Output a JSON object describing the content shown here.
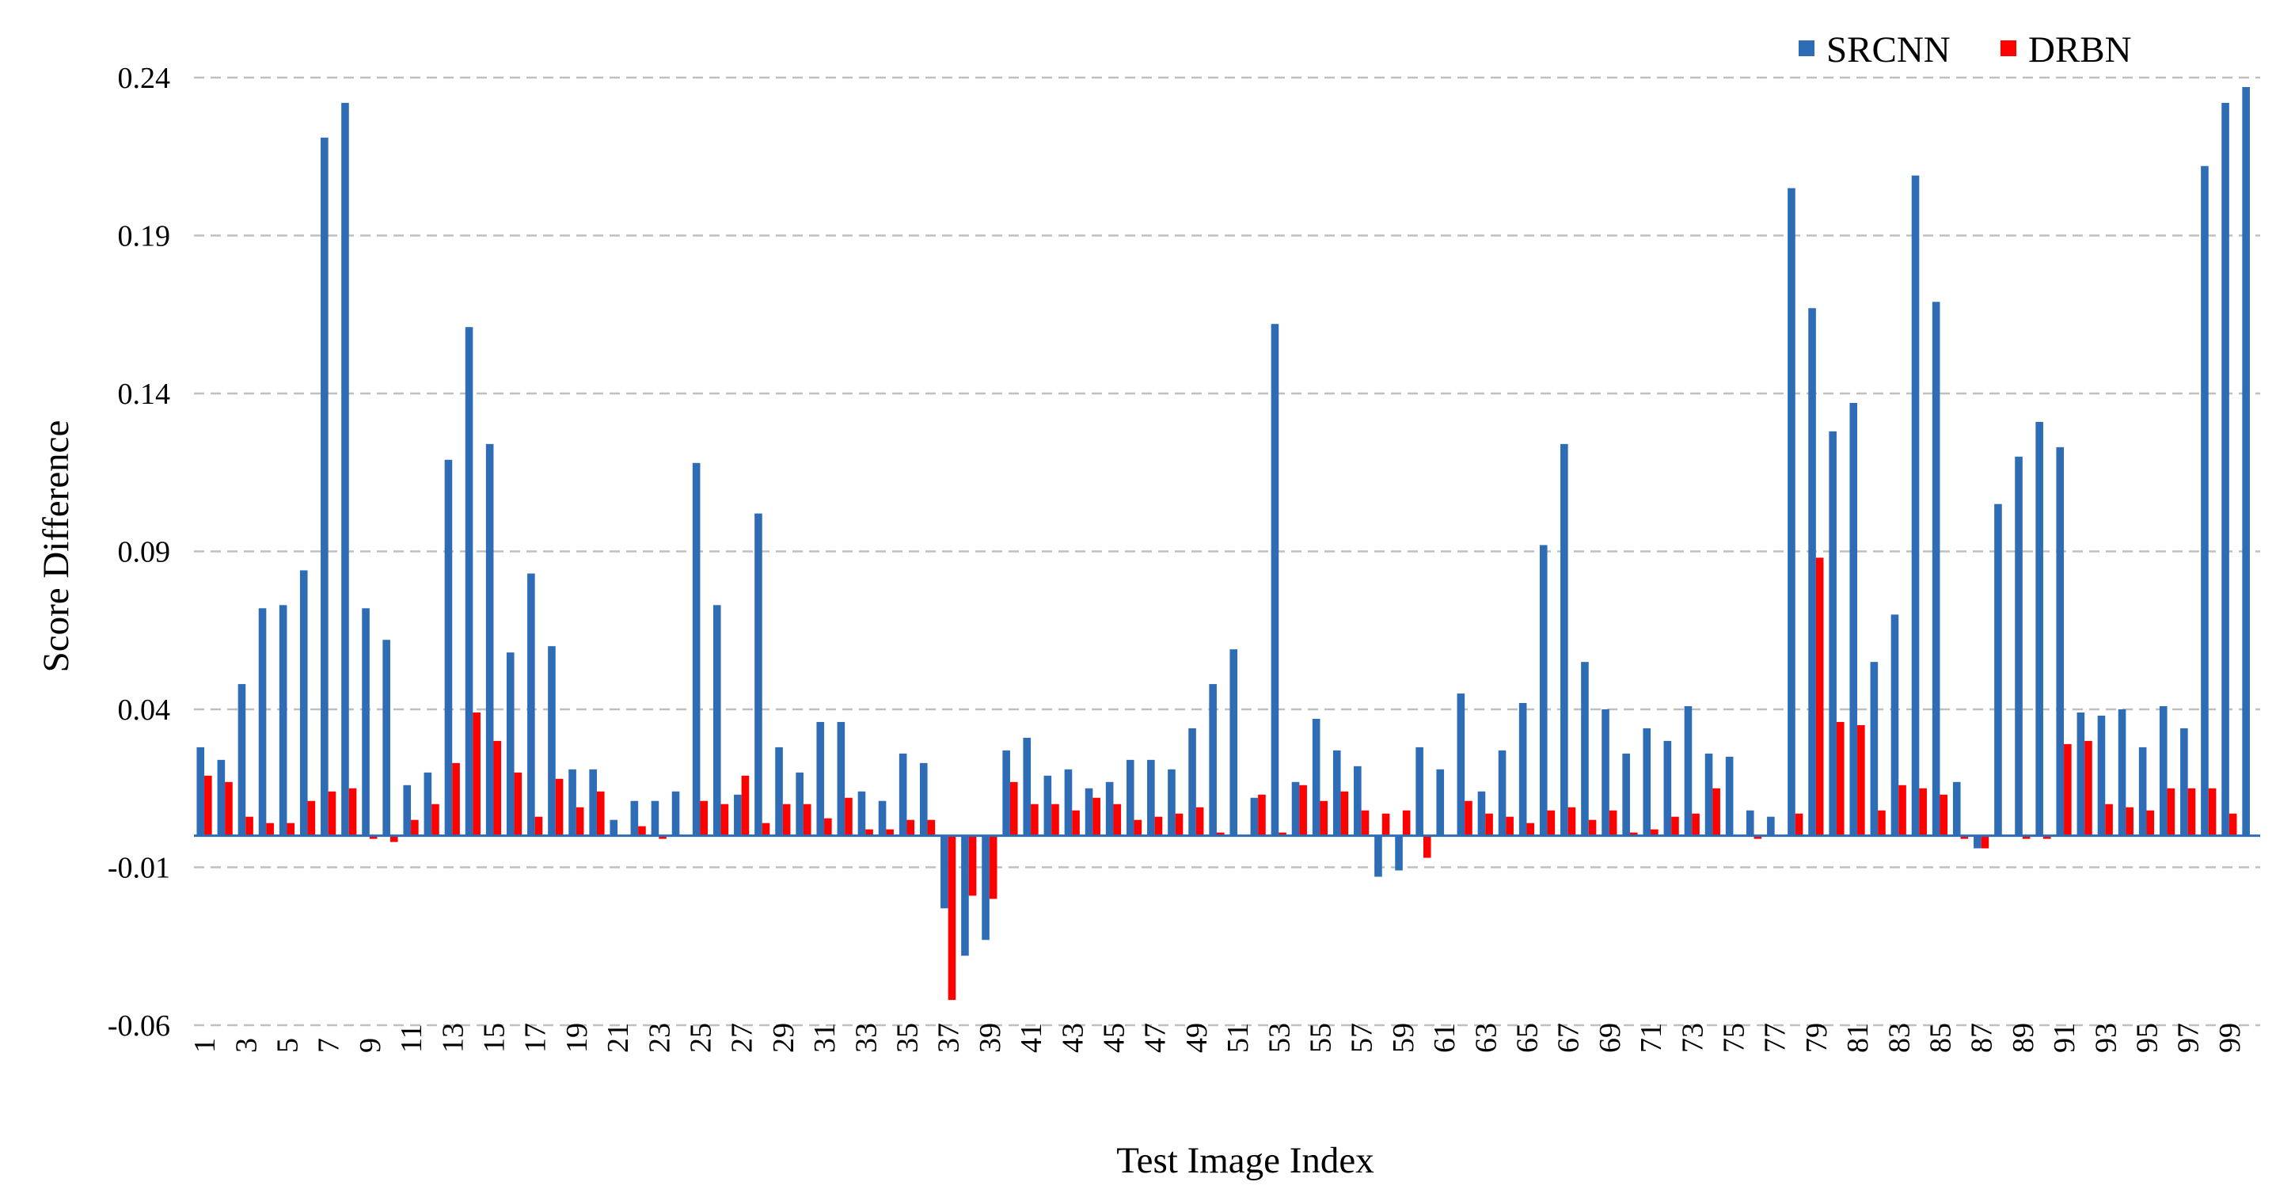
{
  "chart_data": {
    "type": "bar",
    "xlabel": "Test Image Index",
    "ylabel": "Score Difference",
    "ylim": [
      -0.06,
      0.24
    ],
    "yticks": [
      -0.06,
      -0.01,
      0.04,
      0.09,
      0.14,
      0.19,
      0.24
    ],
    "ytick_labels": [
      "-0.06",
      "-0.01",
      "0.04",
      "0.09",
      "0.14",
      "0.19",
      "0.24"
    ],
    "grid": "horizontal dashed",
    "legend_position": "top-right",
    "categories": [
      "1",
      "2",
      "3",
      "4",
      "5",
      "6",
      "7",
      "8",
      "9",
      "10",
      "11",
      "12",
      "13",
      "14",
      "15",
      "16",
      "17",
      "18",
      "19",
      "20",
      "21",
      "22",
      "23",
      "24",
      "25",
      "26",
      "27",
      "28",
      "29",
      "30",
      "31",
      "32",
      "33",
      "34",
      "35",
      "36",
      "37",
      "38",
      "39",
      "40",
      "41",
      "42",
      "43",
      "44",
      "45",
      "46",
      "47",
      "48",
      "49",
      "50",
      "51",
      "52",
      "53",
      "54",
      "55",
      "56",
      "57",
      "58",
      "59",
      "60",
      "61",
      "62",
      "63",
      "64",
      "65",
      "66",
      "67",
      "68",
      "69",
      "70",
      "71",
      "72",
      "73",
      "74",
      "75",
      "76",
      "77",
      "78",
      "79",
      "80",
      "81",
      "82",
      "83",
      "84",
      "85",
      "86",
      "87",
      "88",
      "89",
      "90",
      "91",
      "92",
      "93",
      "94",
      "95",
      "96",
      "97",
      "98",
      "99",
      "100"
    ],
    "visible_tick_labels": [
      "1",
      "3",
      "5",
      "7",
      "9",
      "11",
      "13",
      "15",
      "17",
      "19",
      "21",
      "23",
      "25",
      "27",
      "29",
      "31",
      "33",
      "35",
      "37",
      "39",
      "41",
      "43",
      "45",
      "47",
      "49",
      "51",
      "53",
      "55",
      "57",
      "59",
      "61",
      "63",
      "65",
      "67",
      "69",
      "71",
      "73",
      "75",
      "77",
      "79",
      "81",
      "83",
      "85",
      "87",
      "89",
      "91",
      "93",
      "95",
      "97",
      "99"
    ],
    "series": [
      {
        "name": "SRCNN",
        "color": "#2e6cb5",
        "values": [
          0.028,
          0.024,
          0.048,
          0.072,
          0.073,
          0.084,
          0.221,
          0.232,
          0.072,
          0.062,
          0.016,
          0.02,
          0.119,
          0.161,
          0.124,
          0.058,
          0.083,
          0.06,
          0.021,
          0.021,
          0.005,
          0.011,
          0.011,
          0.014,
          0.118,
          0.073,
          0.013,
          0.102,
          0.028,
          0.02,
          0.036,
          0.036,
          0.014,
          0.011,
          0.026,
          0.023,
          -0.023,
          -0.038,
          -0.033,
          0.027,
          0.031,
          0.019,
          0.021,
          0.015,
          0.017,
          0.024,
          0.024,
          0.021,
          0.034,
          0.048,
          0.059,
          0.012,
          0.162,
          0.017,
          0.037,
          0.027,
          0.022,
          -0.013,
          -0.011,
          0.028,
          0.021,
          0.045,
          0.014,
          0.027,
          0.042,
          0.092,
          0.124,
          0.055,
          0.04,
          0.026,
          0.034,
          0.03,
          0.041,
          0.026,
          0.025,
          0.008,
          0.006,
          0.205,
          0.167,
          0.128,
          0.137,
          0.055,
          0.07,
          0.209,
          0.169,
          0.017,
          -0.004,
          0.105,
          0.12,
          0.131,
          0.123,
          0.039,
          0.038,
          0.04,
          0.028,
          0.041,
          0.034,
          0.212,
          0.232,
          0.237
        ]
      },
      {
        "name": "DRBN",
        "color": "#ff0000",
        "values": [
          0.019,
          0.017,
          0.006,
          0.004,
          0.004,
          0.011,
          0.014,
          0.015,
          -0.001,
          -0.002,
          0.005,
          0.01,
          0.023,
          0.039,
          0.03,
          0.02,
          0.006,
          0.018,
          0.009,
          0.014,
          0.0,
          0.003,
          -0.001,
          0.0,
          0.011,
          0.01,
          0.019,
          0.004,
          0.01,
          0.01,
          0.0055,
          0.012,
          0.002,
          0.002,
          0.005,
          0.005,
          -0.052,
          -0.019,
          -0.02,
          0.017,
          0.01,
          0.01,
          0.008,
          0.012,
          0.01,
          0.005,
          0.006,
          0.007,
          0.009,
          0.001,
          0.0,
          0.013,
          0.001,
          0.016,
          0.011,
          0.014,
          0.008,
          0.007,
          0.008,
          -0.007,
          0.0,
          0.011,
          0.007,
          0.006,
          0.004,
          0.008,
          0.009,
          0.005,
          0.008,
          0.001,
          0.002,
          0.006,
          0.007,
          0.015,
          0.0,
          -0.001,
          0.0,
          0.007,
          0.088,
          0.036,
          0.035,
          0.008,
          0.016,
          0.015,
          0.013,
          -0.001,
          -0.004,
          0.0,
          -0.001,
          -0.001,
          0.029,
          0.03,
          0.01,
          0.009,
          0.008,
          0.015,
          0.015,
          0.015,
          0.007,
          0.0
        ]
      }
    ]
  }
}
